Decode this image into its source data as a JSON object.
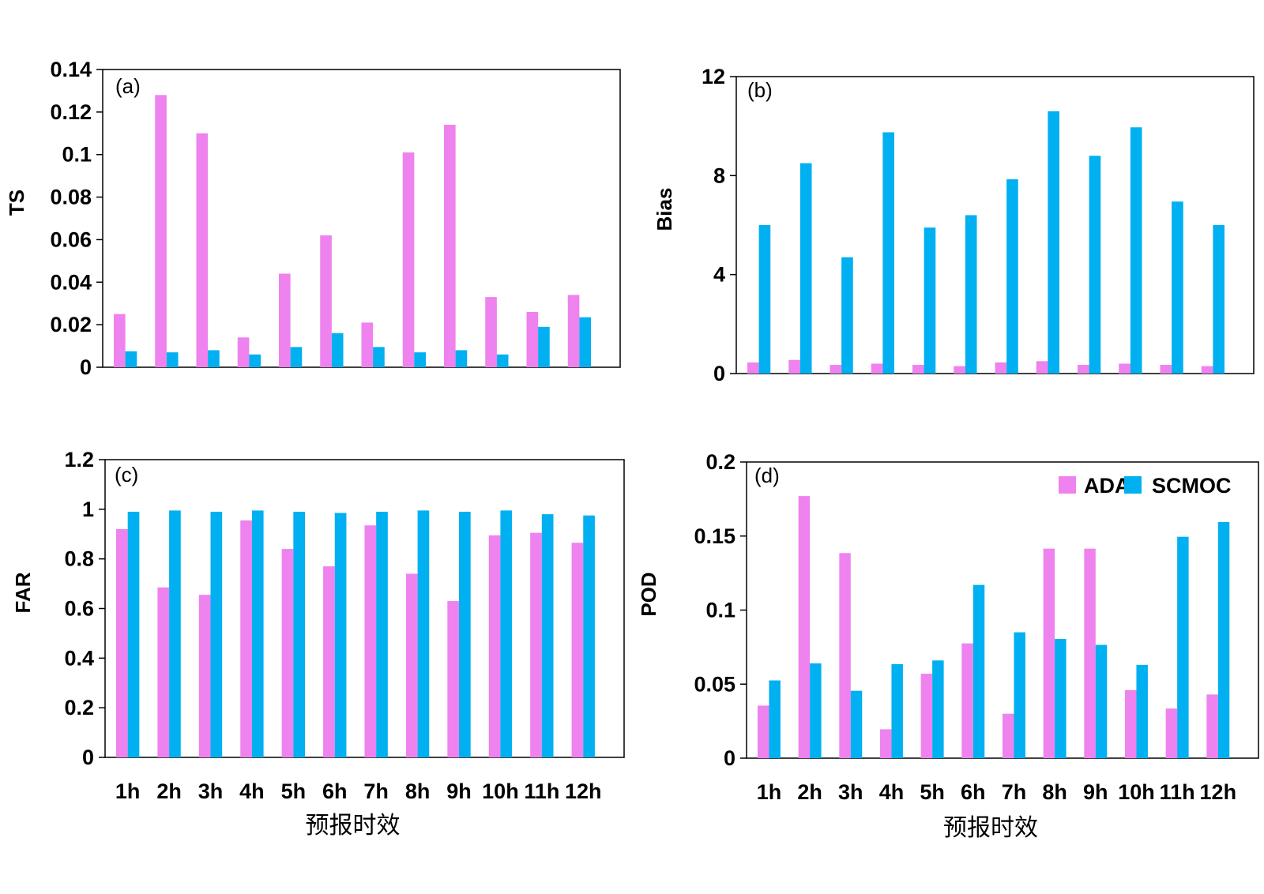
{
  "colors": {
    "ADA": "#ee82ee",
    "SCMOC": "#00b0f0"
  },
  "legend": {
    "placement": "top-right",
    "entries": [
      "ADA",
      "SCMOC"
    ]
  },
  "chart_data": [
    {
      "type": "bar",
      "panel_label": "(a)",
      "ylabel": "TS",
      "xlabel": "",
      "ylim": [
        0,
        0.14
      ],
      "yticks": [
        "0",
        "0.02",
        "0.04",
        "0.06",
        "0.08",
        "0.1",
        "0.12",
        "0.14"
      ],
      "categories": [
        "1h",
        "2h",
        "3h",
        "4h",
        "5h",
        "6h",
        "7h",
        "8h",
        "9h",
        "10h",
        "11h",
        "12h"
      ],
      "series": [
        {
          "name": "ADA",
          "values": [
            0.025,
            0.128,
            0.11,
            0.014,
            0.044,
            0.062,
            0.021,
            0.101,
            0.114,
            0.033,
            0.026,
            0.034
          ]
        },
        {
          "name": "SCMOC",
          "values": [
            0.0075,
            0.007,
            0.008,
            0.006,
            0.0095,
            0.016,
            0.0095,
            0.007,
            0.008,
            0.006,
            0.019,
            0.0235
          ]
        }
      ]
    },
    {
      "type": "bar",
      "panel_label": "(b)",
      "ylabel": "Bias",
      "xlabel": "",
      "ylim": [
        0,
        12
      ],
      "yticks": [
        "0",
        "4",
        "8",
        "12"
      ],
      "categories": [
        "1h",
        "2h",
        "3h",
        "4h",
        "5h",
        "6h",
        "7h",
        "8h",
        "9h",
        "10h",
        "11h",
        "12h"
      ],
      "series": [
        {
          "name": "ADA",
          "values": [
            0.45,
            0.55,
            0.35,
            0.4,
            0.35,
            0.3,
            0.45,
            0.5,
            0.35,
            0.4,
            0.35,
            0.3
          ]
        },
        {
          "name": "SCMOC",
          "values": [
            6.0,
            8.5,
            4.7,
            9.75,
            5.9,
            6.4,
            7.85,
            10.6,
            8.8,
            9.95,
            6.95,
            6.0
          ]
        }
      ]
    },
    {
      "type": "bar",
      "panel_label": "(c)",
      "ylabel": "FAR",
      "xlabel": "预报时效",
      "ylim": [
        0,
        1.2
      ],
      "yticks": [
        "0",
        "0.2",
        "0.4",
        "0.6",
        "0.8",
        "1",
        "1.2"
      ],
      "categories": [
        "1h",
        "2h",
        "3h",
        "4h",
        "5h",
        "6h",
        "7h",
        "8h",
        "9h",
        "10h",
        "11h",
        "12h"
      ],
      "series": [
        {
          "name": "ADA",
          "values": [
            0.92,
            0.685,
            0.655,
            0.955,
            0.84,
            0.77,
            0.935,
            0.74,
            0.63,
            0.895,
            0.905,
            0.865
          ]
        },
        {
          "name": "SCMOC",
          "values": [
            0.99,
            0.995,
            0.99,
            0.995,
            0.99,
            0.985,
            0.99,
            0.995,
            0.99,
            0.995,
            0.98,
            0.975
          ]
        }
      ]
    },
    {
      "type": "bar",
      "panel_label": "(d)",
      "ylabel": "POD",
      "xlabel": "预报时效",
      "ylim": [
        0,
        0.2
      ],
      "yticks": [
        "0",
        "0.05",
        "0.1",
        "0.15",
        "0.2"
      ],
      "categories": [
        "1h",
        "2h",
        "3h",
        "4h",
        "5h",
        "6h",
        "7h",
        "8h",
        "9h",
        "10h",
        "11h",
        "12h"
      ],
      "series": [
        {
          "name": "ADA",
          "values": [
            0.0355,
            0.177,
            0.1385,
            0.0195,
            0.057,
            0.0775,
            0.03,
            0.1415,
            0.1415,
            0.046,
            0.0335,
            0.043
          ]
        },
        {
          "name": "SCMOC",
          "values": [
            0.0525,
            0.064,
            0.0455,
            0.0635,
            0.066,
            0.117,
            0.085,
            0.0805,
            0.0765,
            0.063,
            0.1495,
            0.1595
          ]
        }
      ]
    }
  ]
}
